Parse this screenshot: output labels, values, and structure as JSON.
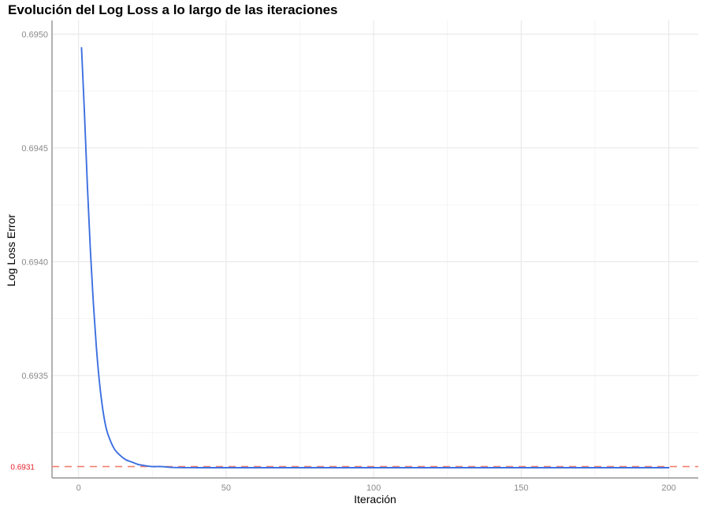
{
  "chart_data": {
    "type": "line",
    "title": "Evolución del Log Loss a lo largo de las iteraciones",
    "xlabel": "Iteración",
    "ylabel": "Log Loss Error",
    "xlim": [
      -9,
      210
    ],
    "ylim": [
      0.69305,
      0.69506
    ],
    "x_ticks": [
      0,
      50,
      100,
      150,
      200
    ],
    "x_tick_labels": [
      "0",
      "50",
      "100",
      "150",
      "200"
    ],
    "y_ticks": [
      0.6935,
      0.694,
      0.6945,
      0.695
    ],
    "y_tick_labels": [
      "0.6935",
      "0.6940",
      "0.6945",
      "0.6950"
    ],
    "grid": true,
    "series": [
      {
        "color": "#3c6fe0",
        "x": [
          1,
          2,
          3,
          4,
          5,
          6,
          7,
          8,
          9,
          10,
          12,
          14,
          16,
          18,
          20,
          22,
          25,
          28,
          32,
          40,
          60,
          100,
          150,
          200
        ],
        "y": [
          0.69494,
          0.69465,
          0.69433,
          0.69405,
          0.69382,
          0.69363,
          0.69348,
          0.69337,
          0.69329,
          0.69324,
          0.69318,
          0.69315,
          0.69313,
          0.69312,
          0.69311,
          0.693105,
          0.6931,
          0.6931,
          0.693096,
          0.693095,
          0.693095,
          0.693095,
          0.693095,
          0.693095
        ]
      }
    ],
    "reference_line": {
      "value": 0.6931,
      "label": "0.6931",
      "color": "#f08070",
      "label_color": "#e8202a",
      "style": "dashed"
    },
    "legend": "none"
  }
}
